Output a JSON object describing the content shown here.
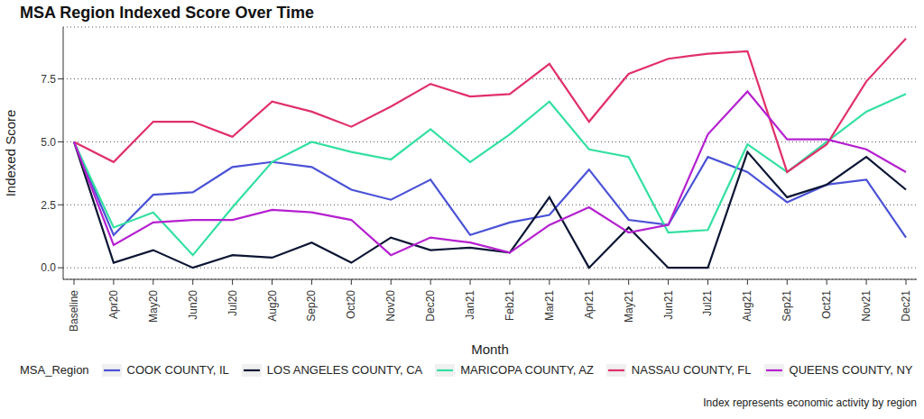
{
  "chart_data": {
    "type": "line",
    "title": "MSA Region Indexed Score Over Time",
    "x_label": "Month",
    "y_label": "Indexed Score",
    "legend_title": "MSA_Region",
    "caption": "Index represents economic activity by region",
    "categories": [
      "Baseline",
      "Apr20",
      "May20",
      "Jun20",
      "Jul20",
      "Aug20",
      "Sep20",
      "Oct20",
      "Nov20",
      "Dec20",
      "Jan21",
      "Feb21",
      "Mar21",
      "Apr21",
      "May21",
      "Jun21",
      "Jul21",
      "Aug21",
      "Sep21",
      "Oct21",
      "Nov21",
      "Dec21"
    ],
    "series": [
      {
        "name": "COOK COUNTY, IL",
        "color": "#4a52d6",
        "values": [
          5,
          1.3,
          2.9,
          3.0,
          4.0,
          4.2,
          4.0,
          3.1,
          2.7,
          3.5,
          1.3,
          1.8,
          2.1,
          3.9,
          1.9,
          1.7,
          4.4,
          3.8,
          2.6,
          3.3,
          3.5,
          1.2
        ]
      },
      {
        "name": "LOS ANGELES COUNTY, CA",
        "color": "#0b1533",
        "values": [
          5,
          0.2,
          0.7,
          0.0,
          0.5,
          0.4,
          1.0,
          0.2,
          1.2,
          0.7,
          0.8,
          0.6,
          2.8,
          0.0,
          1.6,
          0.0,
          0.0,
          4.6,
          2.8,
          3.3,
          4.4,
          3.1
        ]
      },
      {
        "name": "MARICOPA COUNTY, AZ",
        "color": "#33e0a1",
        "values": [
          5,
          1.6,
          2.2,
          0.5,
          2.4,
          4.2,
          5.0,
          4.6,
          4.3,
          5.5,
          4.2,
          5.3,
          6.6,
          4.7,
          4.4,
          1.4,
          1.5,
          4.9,
          3.8,
          5.0,
          6.2,
          6.9
        ]
      },
      {
        "name": "NASSAU COUNTY, FL",
        "color": "#e0306a",
        "values": [
          5,
          4.2,
          5.8,
          5.8,
          5.2,
          6.6,
          6.2,
          5.6,
          6.4,
          7.3,
          6.8,
          6.9,
          8.1,
          5.8,
          7.7,
          8.3,
          8.5,
          8.6,
          3.8,
          4.9,
          7.4,
          9.1
        ]
      },
      {
        "name": "QUEENS COUNTY, NY",
        "color": "#b520d0",
        "values": [
          5,
          0.9,
          1.8,
          1.9,
          1.9,
          2.3,
          2.2,
          1.9,
          0.5,
          1.2,
          1.0,
          0.6,
          1.7,
          2.4,
          1.4,
          1.7,
          5.3,
          7.0,
          5.1,
          5.1,
          4.7,
          3.8
        ]
      }
    ],
    "ylim": [
      -0.46,
      9.56
    ],
    "yticks": [
      {
        "value": 0,
        "label": "0.0"
      },
      2.5,
      {
        "value": 5,
        "label": "5.0"
      },
      7.5
    ],
    "grid": true,
    "legend": "bottom"
  }
}
